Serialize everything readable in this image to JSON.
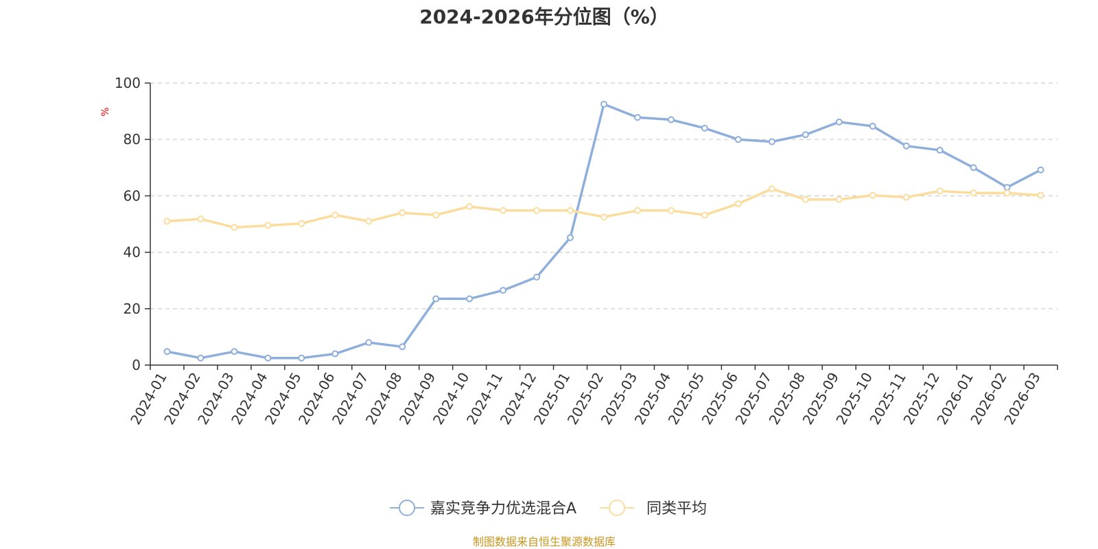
{
  "chart_data": {
    "type": "line",
    "title": "2024-2026年分位图（%）",
    "ylabel": "%",
    "xlabel": "",
    "ylim": [
      0,
      100
    ],
    "yticks": [
      0,
      20,
      40,
      60,
      80,
      100
    ],
    "grid": true,
    "legend_position": "bottom",
    "categories": [
      "2024-01",
      "2024-02",
      "2024-03",
      "2024-04",
      "2024-05",
      "2024-06",
      "2024-07",
      "2024-08",
      "2024-09",
      "2024-10",
      "2024-11",
      "2024-12",
      "2025-01",
      "2025-02",
      "2025-03",
      "2025-04",
      "2025-05",
      "2025-06",
      "2025-07",
      "2025-08",
      "2025-09",
      "2025-10",
      "2025-11",
      "2025-12",
      "2026-01",
      "2026-02",
      "2026-03"
    ],
    "series": [
      {
        "name": "嘉实竞争力优选混合A",
        "color": "#8eaedc",
        "values": [
          4.8,
          2.5,
          4.8,
          2.5,
          2.5,
          4.0,
          8.0,
          6.5,
          23.5,
          23.5,
          26.5,
          31.2,
          45.2,
          92.5,
          87.8,
          87.0,
          84.0,
          80.0,
          79.2,
          81.7,
          86.2,
          84.7,
          77.7,
          76.2,
          70.0,
          63.0,
          69.2
        ]
      },
      {
        "name": "同类平均",
        "color": "#fcdc9c",
        "values": [
          51.0,
          51.8,
          48.8,
          49.5,
          50.2,
          53.2,
          51.0,
          54.0,
          53.2,
          56.2,
          54.8,
          54.8,
          54.8,
          52.5,
          54.8,
          54.8,
          53.2,
          57.2,
          62.5,
          58.7,
          58.7,
          60.2,
          59.5,
          61.7,
          61.0,
          61.0,
          60.2
        ]
      }
    ]
  },
  "footer": {
    "source": "制图数据来自恒生聚源数据库"
  }
}
